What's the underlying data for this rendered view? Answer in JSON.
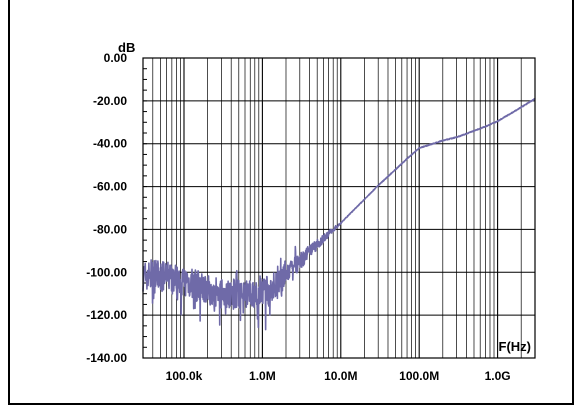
{
  "chart_data": {
    "type": "line",
    "title": "",
    "xlabel": "F(Hz)",
    "ylabel": "dB",
    "x_scale": "log",
    "xlim": [
      30000,
      3000000000
    ],
    "ylim": [
      -140,
      0
    ],
    "grid": true,
    "y_ticks": [
      "0.00",
      "-20.00",
      "-40.00",
      "-60.00",
      "-80.00",
      "-100.00",
      "-120.00",
      "-140.00"
    ],
    "y_tick_values": [
      0,
      -20,
      -40,
      -60,
      -80,
      -100,
      -120,
      -140
    ],
    "x_ticks": [
      "100.0k",
      "1.0M",
      "10.0M",
      "100.0M",
      "1.0G"
    ],
    "x_tick_values": [
      100000,
      1000000,
      10000000,
      100000000,
      1000000000
    ],
    "line_color": "#6f6aa8",
    "series": [
      {
        "x": [
          30000,
          40000,
          50000,
          70000,
          100000,
          150000,
          200000,
          300000,
          500000,
          700000,
          1000000,
          1500000,
          2000000,
          3000000,
          5000000,
          7000000,
          10000000,
          20000000,
          30000000,
          50000000,
          70000000,
          100000000,
          150000000,
          200000000,
          300000000,
          500000000,
          700000000,
          1000000000,
          2000000000,
          3000000000
        ],
        "values": [
          -102,
          -101,
          -102,
          -102,
          -104,
          -106,
          -108,
          -110,
          -110,
          -111,
          -110,
          -106,
          -101,
          -95,
          -87,
          -82,
          -77,
          -66,
          -59.5,
          -52,
          -47,
          -42,
          -40,
          -38.5,
          -37,
          -34,
          -32,
          -29.5,
          -23,
          -19
        ]
      }
    ]
  }
}
